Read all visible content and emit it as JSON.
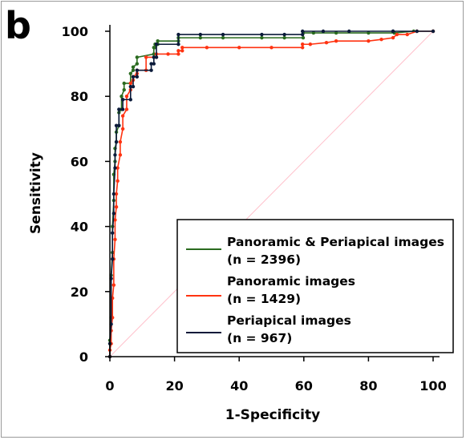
{
  "panel_label": "b",
  "chart_data": {
    "type": "line",
    "title": "",
    "xlabel": "1-Specificity",
    "ylabel": "Sensitivity",
    "xlim": [
      0,
      100
    ],
    "ylim": [
      0,
      100
    ],
    "xticks": [
      0,
      20,
      40,
      60,
      80,
      100
    ],
    "yticks": [
      0,
      20,
      40,
      60,
      80,
      100
    ],
    "grid": false,
    "legend_position": "bottom-right",
    "reference_line": {
      "from": [
        0,
        0
      ],
      "to": [
        100,
        100
      ],
      "color": "#ffc0cb"
    },
    "legend": [
      {
        "line1": "Panoramic & Periapical images",
        "line2": "(n = 2396)",
        "color": "#2a6b1f"
      },
      {
        "line1": "Panoramic images",
        "line2": "(n = 1429)",
        "color": "#ff3311"
      },
      {
        "line1": "Periapical images",
        "line2": "(n = 967)",
        "color": "#0b1a3a"
      }
    ],
    "series": [
      {
        "color": "#2a6b1f",
        "x": [
          0,
          0,
          0.4,
          0.4,
          0.8,
          0.8,
          1.2,
          1.2,
          1.6,
          1.6,
          2.0,
          2.0,
          2.8,
          2.8,
          3.6,
          3.6,
          4.4,
          4.4,
          6.4,
          6.4,
          7.2,
          7.2,
          8.4,
          8.4,
          13.6,
          13.6,
          14.0,
          14.0,
          14.8,
          14.8,
          21.2,
          21.2,
          28,
          35,
          47,
          54,
          59.8,
          59.8,
          63,
          70,
          80,
          88,
          94,
          100
        ],
        "y": [
          0,
          5,
          12,
          25,
          32,
          40,
          48,
          56,
          60,
          64,
          66,
          69,
          71,
          75,
          76,
          80,
          82,
          84,
          84,
          87,
          88,
          89,
          90,
          92,
          93,
          95,
          95,
          96,
          96,
          97,
          97,
          98,
          98,
          98,
          98,
          98,
          98,
          99.5,
          99.5,
          99.5,
          99.5,
          99.5,
          100,
          100
        ]
      },
      {
        "color": "#ff3311",
        "x": [
          0,
          0,
          0.4,
          0.4,
          0.8,
          0.8,
          1.2,
          1.2,
          1.6,
          1.6,
          2.0,
          2.0,
          2.4,
          2.4,
          3.2,
          3.2,
          4.0,
          4.0,
          5.2,
          5.2,
          6.4,
          6.4,
          7.2,
          7.2,
          8.4,
          8.4,
          11.2,
          11.2,
          14.4,
          14.4,
          18,
          21.2,
          21.2,
          22.4,
          22.4,
          30,
          40,
          50,
          59.6,
          59.6,
          62,
          67,
          70,
          80,
          84,
          87.6,
          88.8,
          92,
          95,
          100
        ],
        "y": [
          0,
          2,
          4,
          8,
          12,
          18,
          22,
          30,
          36,
          42,
          46,
          50,
          54,
          58,
          62,
          66,
          70,
          74,
          76,
          80,
          82,
          84,
          85,
          86,
          87,
          88,
          88,
          92,
          92,
          93,
          93,
          93,
          94,
          94,
          95,
          95,
          95,
          95,
          95,
          96,
          96,
          96.5,
          97,
          97,
          97.5,
          98,
          99,
          99,
          100,
          100
        ]
      },
      {
        "color": "#0b1a3a",
        "x": [
          0,
          0,
          0.4,
          0.4,
          0.8,
          0.8,
          1.2,
          1.2,
          1.6,
          1.6,
          2.0,
          2.0,
          2.8,
          2.8,
          4.0,
          4.0,
          6.4,
          6.4,
          7.2,
          7.2,
          8.4,
          8.4,
          12.8,
          12.8,
          13.6,
          13.6,
          14.4,
          14.4,
          21.2,
          21.2,
          28,
          35,
          47,
          54,
          59.6,
          59.6,
          66,
          74,
          87.6,
          87.6,
          95,
          100
        ],
        "y": [
          0,
          4,
          10,
          24,
          30,
          38,
          44,
          50,
          58,
          62,
          66,
          71,
          71,
          76,
          76,
          79,
          79,
          83,
          83,
          86,
          86,
          88,
          88,
          90,
          90,
          92,
          92,
          96,
          96,
          99,
          99,
          99,
          99,
          99,
          99,
          100,
          100,
          100,
          100,
          100,
          100,
          100
        ]
      }
    ]
  }
}
